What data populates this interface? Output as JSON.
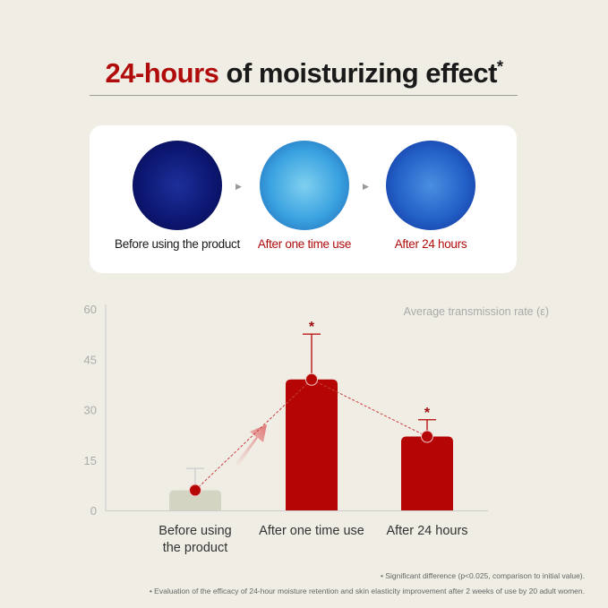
{
  "title": {
    "highlight": "24-hours",
    "rest": " of moisturizing effect",
    "mark": "*"
  },
  "images": [
    {
      "label": "Before using the product",
      "color": "#1a1a1a"
    },
    {
      "label": "After one time use",
      "color": "#b00c0c"
    },
    {
      "label": "After 24 hours",
      "color": "#b00c0c"
    }
  ],
  "chart_data": {
    "type": "bar",
    "ylabel": "Average transmission rate (ε)",
    "ylim": [
      0,
      60
    ],
    "yticks": [
      "0",
      "15",
      "30",
      "45",
      "60"
    ],
    "categories": [
      "Before using the product",
      "After one time use",
      "After 24 hours"
    ],
    "category_lines": [
      [
        "Before using",
        "the product"
      ],
      [
        "After one time use"
      ],
      [
        "After 24 hours"
      ]
    ],
    "values": [
      6,
      39,
      22
    ],
    "error_upper": [
      12.5,
      52.5,
      27
    ],
    "significant": [
      "",
      "*",
      "*"
    ],
    "bar_colors": [
      "#d3d4c2",
      "#b50505",
      "#b50505"
    ]
  },
  "notes": [
    "• Significant difference (p<0.025, comparison to initial value).",
    "• Evaluation of the efficacy of 24-hour moisture retention and skin elasticity improvement after 2 weeks of use by 20 adult women."
  ]
}
